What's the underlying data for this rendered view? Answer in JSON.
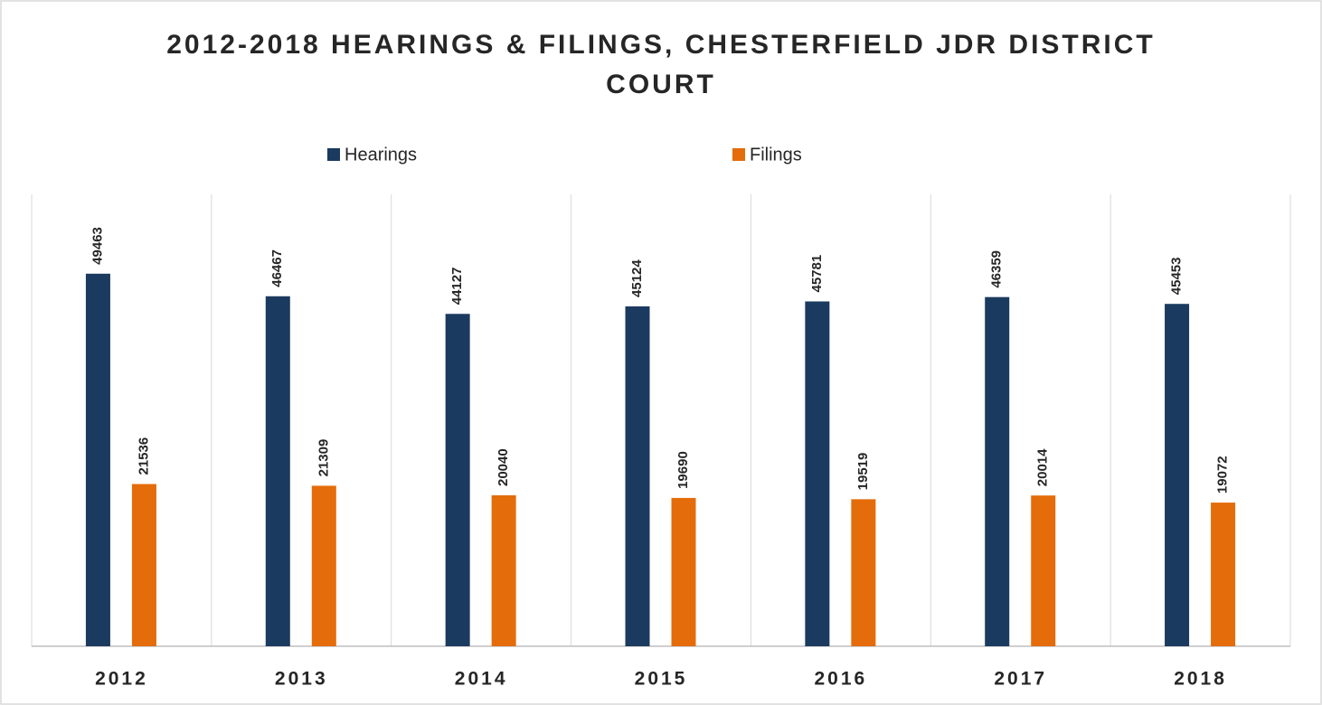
{
  "chart_data": {
    "type": "bar",
    "title": "2012-2018 HEARINGS & FILINGS, CHESTERFIELD JDR DISTRICT COURT",
    "categories": [
      "2012",
      "2013",
      "2014",
      "2015",
      "2016",
      "2017",
      "2018"
    ],
    "series": [
      {
        "name": "Hearings",
        "color": "#1b3a5f",
        "values": [
          49463,
          46467,
          44127,
          45124,
          45781,
          46359,
          45453
        ]
      },
      {
        "name": "Filings",
        "color": "#e46c0a",
        "values": [
          21536,
          21309,
          20040,
          19690,
          19519,
          20014,
          19072
        ]
      }
    ],
    "ylim": [
      0,
      60000
    ],
    "legend": "top"
  }
}
